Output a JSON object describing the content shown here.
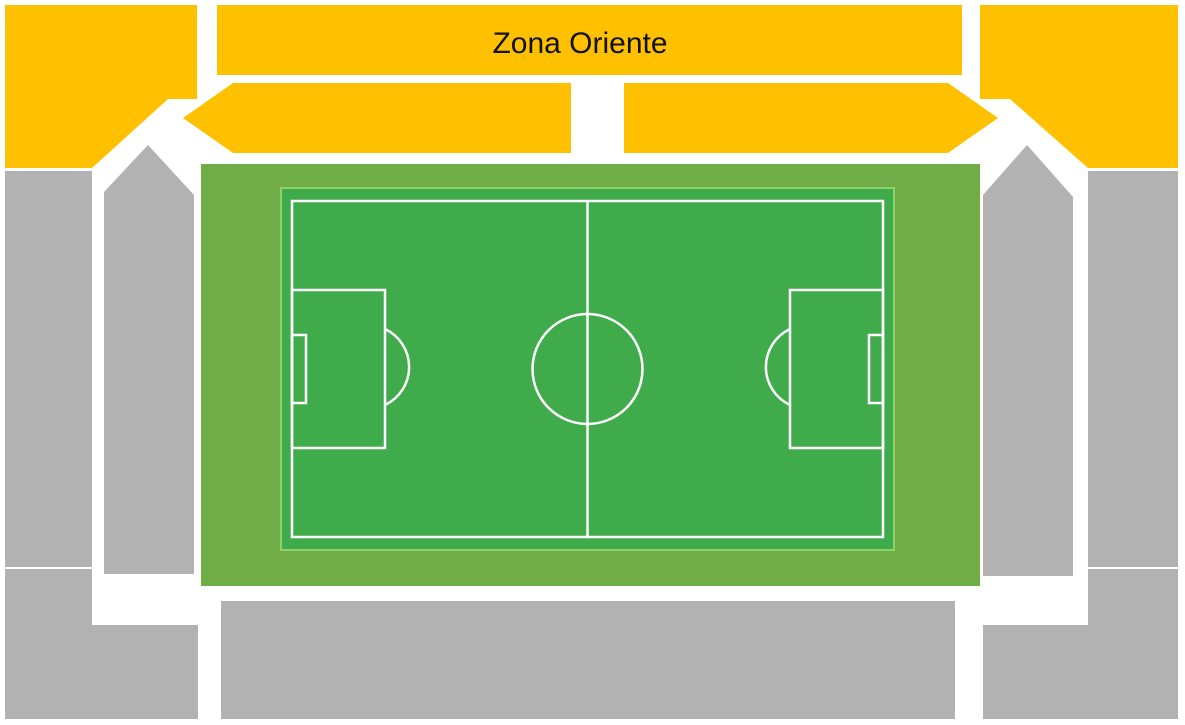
{
  "stadium_map": {
    "sections": {
      "oriente_main": {
        "label": "Zona Oriente",
        "color": "#ffc000"
      },
      "oriente_left": {
        "label": "",
        "color": "#ffc000"
      },
      "oriente_right": {
        "label": "",
        "color": "#ffc000"
      },
      "corner_nw": {
        "label": "",
        "color": "#ffc000"
      },
      "corner_ne": {
        "label": "",
        "color": "#ffc000"
      },
      "west_outer": {
        "label": "",
        "color": "#b2b2b2"
      },
      "west_inner": {
        "label": "",
        "color": "#b2b2b2"
      },
      "east_outer": {
        "label": "",
        "color": "#b2b2b2"
      },
      "east_inner": {
        "label": "",
        "color": "#b2b2b2"
      },
      "south_main": {
        "label": "",
        "color": "#b2b2b2"
      },
      "corner_sw": {
        "label": "",
        "color": "#b2b2b2"
      },
      "corner_se": {
        "label": "",
        "color": "#b2b2b2"
      }
    },
    "pitch": {
      "surround_color": "#70ad47",
      "field_color": "#3fab4b",
      "line_color": "#ffffff"
    }
  }
}
